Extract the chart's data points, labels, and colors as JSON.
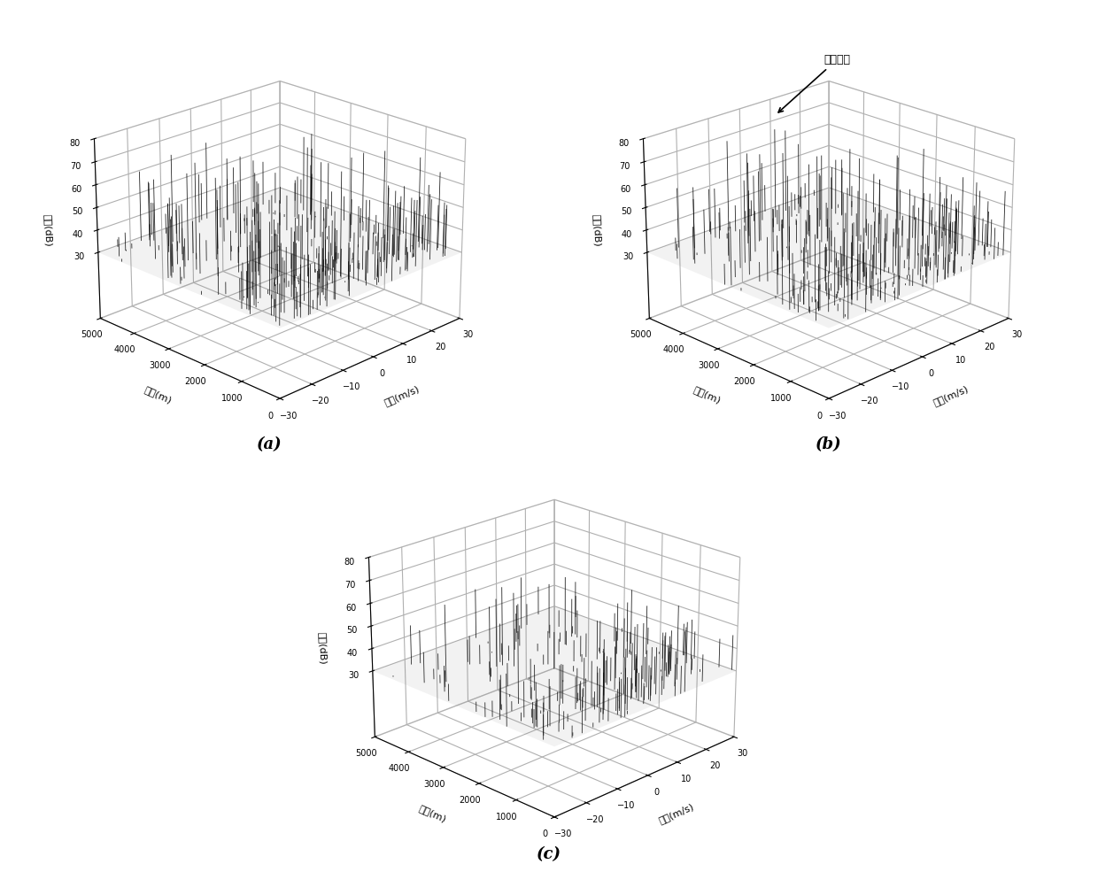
{
  "velocity_range": [
    -30,
    30
  ],
  "distance_range": [
    0,
    5000
  ],
  "zlim": [
    0,
    80
  ],
  "velocity_ticks": [
    -30,
    -20,
    -10,
    0,
    10,
    20,
    30
  ],
  "distance_ticks": [
    0,
    1000,
    2000,
    3000,
    4000,
    5000
  ],
  "amplitude_ticks": [
    30,
    40,
    50,
    60,
    70,
    80
  ],
  "xlabel": "速度(m/s)",
  "ylabel": "距离(m)",
  "zlabel": "幅度(dB)",
  "label_a": "(a)",
  "label_b": "(b)",
  "label_c": "(c)",
  "annotation_b": "日标主电",
  "background_color": "#ffffff",
  "elev": 22,
  "azim": -135,
  "zfloor": 30
}
